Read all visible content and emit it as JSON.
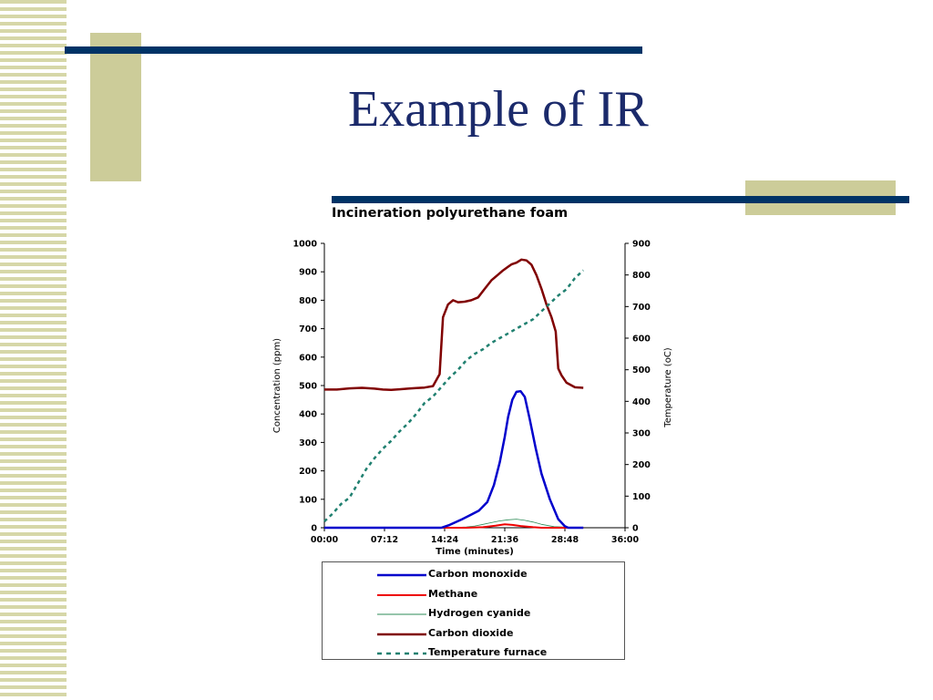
{
  "slide": {
    "title": "Example of IR"
  },
  "chart_data": {
    "type": "line",
    "title": "Incineration polyurethane foam",
    "xlabel": "Time (minutes)",
    "ylabel": "Concentration (ppm)",
    "y2label": "Temperature (oC)",
    "xlim": [
      0,
      36
    ],
    "ylim": [
      0,
      1000
    ],
    "y2lim": [
      0,
      900
    ],
    "x_ticks": [
      "00:00",
      "07:12",
      "14:24",
      "21:36",
      "28:48",
      "36:00"
    ],
    "y_ticks": [
      "0",
      "100",
      "200",
      "300",
      "400",
      "500",
      "600",
      "700",
      "800",
      "900",
      "1000"
    ],
    "y2_ticks": [
      "0",
      "100",
      "200",
      "300",
      "400",
      "500",
      "600",
      "700",
      "800",
      "900"
    ],
    "grid": false,
    "legend_position": "bottom",
    "series": [
      {
        "name": "Carbon monoxide",
        "axis": "left",
        "color": "#0000cc",
        "style": "solid",
        "x": [
          0,
          14.0,
          15.0,
          16.5,
          17.5,
          18.5,
          19.5,
          20.3,
          21.0,
          21.6,
          22.0,
          22.5,
          23.0,
          23.5,
          24.0,
          24.6,
          25.3,
          26.0,
          27.0,
          28.0,
          28.8,
          29.2,
          31.0
        ],
        "y": [
          0,
          0,
          10,
          30,
          45,
          60,
          90,
          150,
          230,
          320,
          390,
          450,
          478,
          480,
          460,
          380,
          280,
          190,
          100,
          30,
          5,
          0,
          0
        ]
      },
      {
        "name": "Methane",
        "axis": "left",
        "color": "#ee0000",
        "style": "solid",
        "x": [
          0,
          17,
          19,
          20.5,
          21.6,
          22.5,
          23.5,
          25,
          26,
          31
        ],
        "y": [
          0,
          0,
          2,
          7,
          12,
          10,
          6,
          2,
          0,
          0
        ]
      },
      {
        "name": "Hydrogen cyanide",
        "axis": "left",
        "color": "#2e8b57",
        "style": "thin",
        "x": [
          0,
          15,
          17,
          18,
          19,
          20,
          21,
          22,
          23,
          24,
          25,
          26,
          27.5,
          31
        ],
        "y": [
          0,
          0,
          3,
          6,
          12,
          18,
          24,
          28,
          30,
          26,
          20,
          12,
          4,
          0
        ]
      },
      {
        "name": "Carbon dioxide",
        "axis": "left",
        "color": "#800000",
        "style": "solid",
        "x": [
          0,
          1.5,
          3,
          4.5,
          6,
          7,
          8,
          9,
          10,
          11,
          12,
          13,
          13.8,
          14.2,
          14.8,
          15.4,
          16.0,
          16.8,
          17.6,
          18.4,
          19.2,
          20.0,
          20.8,
          21.4,
          22.0,
          22.4,
          23.0,
          23.6,
          24.2,
          24.8,
          25.4,
          26.0,
          26.6,
          27.2,
          27.7,
          28.0,
          28.4,
          29.0,
          30.0,
          31.0
        ],
        "y": [
          486,
          486,
          490,
          492,
          489,
          486,
          485,
          487,
          489,
          491,
          493,
          498,
          540,
          740,
          785,
          800,
          793,
          795,
          800,
          810,
          840,
          870,
          890,
          905,
          918,
          926,
          932,
          943,
          940,
          925,
          888,
          840,
          785,
          740,
          690,
          560,
          536,
          510,
          494,
          492
        ]
      },
      {
        "name": "Temperature furnace",
        "axis": "right",
        "color": "#208070",
        "style": "dashed",
        "x": [
          0,
          1,
          2,
          3,
          4,
          5,
          6,
          7,
          8,
          9,
          10,
          11,
          12,
          13,
          14,
          15,
          16,
          17,
          18,
          19,
          20,
          21,
          22,
          23,
          24,
          25,
          26,
          27,
          28,
          29,
          30,
          31
        ],
        "y": [
          20,
          45,
          75,
          95,
          140,
          185,
          220,
          250,
          275,
          305,
          330,
          360,
          395,
          415,
          445,
          475,
          500,
          530,
          550,
          565,
          585,
          600,
          615,
          630,
          645,
          660,
          685,
          710,
          735,
          755,
          790,
          815
        ]
      }
    ]
  }
}
